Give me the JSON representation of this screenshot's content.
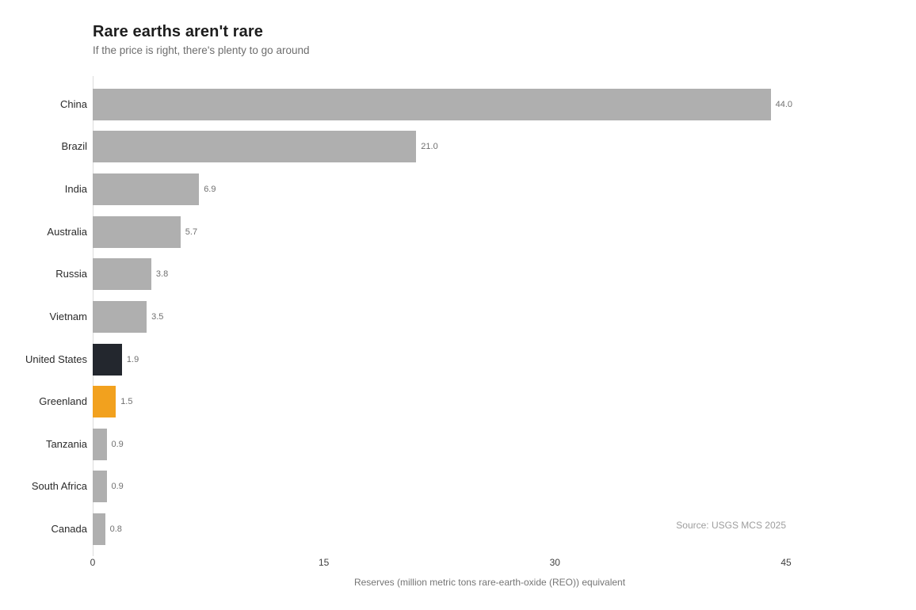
{
  "header": {
    "title": "Rare earths aren't rare",
    "subtitle": "If the price is right, there's plenty to go around"
  },
  "chart_data": {
    "type": "bar",
    "orientation": "horizontal",
    "title": "Rare earths aren't rare",
    "subtitle": "If the price is right, there's plenty to go around",
    "categories": [
      "China",
      "Brazil",
      "India",
      "Australia",
      "Russia",
      "Vietnam",
      "United States",
      "Greenland",
      "Tanzania",
      "South Africa",
      "Canada"
    ],
    "values": [
      44.0,
      21.0,
      6.9,
      5.7,
      3.8,
      3.5,
      1.9,
      1.5,
      0.9,
      0.9,
      0.8
    ],
    "value_labels": [
      "44.0",
      "21.0",
      "6.9",
      "5.7",
      "3.8",
      "3.5",
      "1.9",
      "1.5",
      "0.9",
      "0.9",
      "0.8"
    ],
    "bar_colors": [
      "#afafaf",
      "#afafaf",
      "#afafaf",
      "#afafaf",
      "#afafaf",
      "#afafaf",
      "#23272e",
      "#f2a11e",
      "#afafaf",
      "#afafaf",
      "#afafaf"
    ],
    "colors": {
      "default_bar": "#afafaf",
      "united_states_highlight": "#23272e",
      "greenland_highlight": "#f2a11e",
      "axis_line": "#dcdcdc"
    },
    "xlabel": "Reserves (million metric tons rare-earth-oxide (REO)) equivalent",
    "x_ticks": [
      0,
      15,
      30,
      45
    ],
    "x_tick_labels": [
      "0",
      "15",
      "30",
      "45"
    ],
    "xlim": [
      0,
      45
    ],
    "grid": false,
    "legend": "none",
    "source": "Source: USGS MCS 2025"
  }
}
